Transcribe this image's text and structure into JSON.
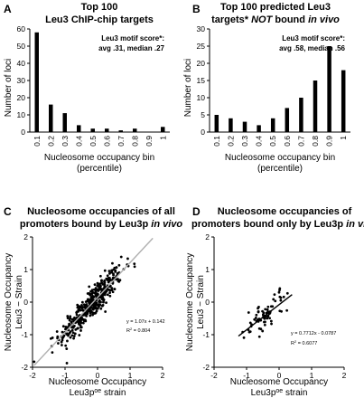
{
  "chart_data": [
    {
      "panel": "A",
      "type": "bar",
      "title": "Top 100",
      "subtitle": "Leu3 ChIP-chip targets",
      "annotation_line1": "Leu3 motif score*:",
      "annotation_line2": "avg .31, median .27",
      "xlabel": "Nucleosome occupancy bin",
      "xlabel_line2": "(percentile)",
      "ylabel": "Number of loci",
      "categories": [
        "0.1",
        "0.2",
        "0.3",
        "0.4",
        "0.5",
        "0.6",
        "0.7",
        "0.8",
        "0.9",
        "1"
      ],
      "values": [
        58,
        16,
        11,
        4,
        2,
        2,
        1,
        2,
        0,
        3
      ],
      "ylim": [
        0,
        60
      ],
      "yticks": [
        "0",
        "10",
        "20",
        "30",
        "40",
        "50",
        "60"
      ],
      "grid": false
    },
    {
      "panel": "B",
      "type": "bar",
      "title": "Top 100 predicted Leu3",
      "subtitle_plain": "targets* ",
      "subtitle_emph": "NOT",
      "subtitle_plain2": " bound ",
      "subtitle_italic": "in vivo",
      "annotation_line1": "Leu3 motif score*:",
      "annotation_line2": "avg .58, median .56",
      "xlabel": "Nucleosome occupancy bin",
      "xlabel_line2": "(percentile)",
      "ylabel": "Number of loci",
      "categories": [
        "0.1",
        "0.2",
        "0.3",
        "0.4",
        "0.5",
        "0.6",
        "0.7",
        "0.8",
        "0.9",
        "1"
      ],
      "values": [
        5,
        4,
        3,
        2,
        4,
        7,
        10,
        15,
        25,
        18
      ],
      "ylim": [
        0,
        30
      ],
      "yticks": [
        "0",
        "5",
        "10",
        "15",
        "20",
        "25",
        "30"
      ],
      "grid": false
    },
    {
      "panel": "C",
      "type": "scatter",
      "title": "Nucleosome occupancies of all",
      "subtitle_plain": "promoters bound by Leu3p ",
      "subtitle_italic": "in vivo",
      "xlabel": "Nucleosome Occupancy",
      "xlabel_line2_plain": "Leu3p",
      "xlabel_sup": "oe",
      "xlabel_line2_rest": " strain",
      "ylabel": "Nucleosome Occupancy",
      "ylabel_line2": "Leu3 − Strain",
      "xlim": [
        -2,
        2
      ],
      "ylim": [
        -2,
        2
      ],
      "xticks": [
        "-2",
        "-1",
        "0",
        "1",
        "2"
      ],
      "yticks": [
        "-2",
        "-1",
        "0",
        "1",
        "2"
      ],
      "fit_equation": "y = 1.07x + 0.142",
      "fit_r2_prefix": "R",
      "fit_r2_sup": "2",
      "fit_r2_value": " = 0.804",
      "fit": {
        "slope": 1.07,
        "intercept": 0.142,
        "x_range": [
          -1.95,
          1.7
        ]
      },
      "n_points": 420,
      "x_center": -0.2,
      "x_spread": 0.48,
      "y_residual_spread": 0.24
    },
    {
      "panel": "D",
      "type": "scatter",
      "title": "Nucleosome occupancies of",
      "subtitle_plain": "promoters bound only by Leu3p ",
      "subtitle_italic": "in vivo",
      "xlabel": "Nucleosome Occupancy",
      "xlabel_line2_plain": "Leu3p",
      "xlabel_sup": "oe",
      "xlabel_line2_rest": " strain",
      "ylabel": "Nucleosome Occupancy",
      "ylabel_line2": "Leu3 − Strain",
      "xlim": [
        -2,
        2
      ],
      "ylim": [
        -2,
        2
      ],
      "xticks": [
        "-2",
        "-1",
        "0",
        "1",
        "2"
      ],
      "yticks": [
        "-2",
        "-1",
        "0",
        "1",
        "2"
      ],
      "fit_equation": "y = 0.7712x - 0.0787",
      "fit_r2_prefix": "R",
      "fit_r2_sup": "2",
      "fit_r2_value": " = 0.6077",
      "fit": {
        "slope": 0.7712,
        "intercept": -0.0787,
        "x_range": [
          -1.25,
          0.4
        ]
      },
      "n_points": 70,
      "x_center": -0.45,
      "x_spread": 0.32,
      "y_residual_spread": 0.2
    }
  ]
}
